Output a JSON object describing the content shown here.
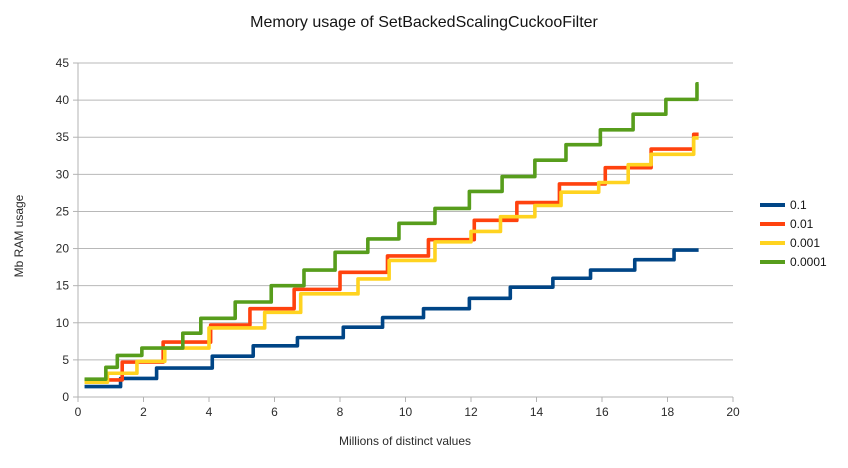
{
  "chart_data": {
    "type": "line",
    "line_style": "step-after",
    "title": "Memory usage of SetBackedScalingCuckooFilter",
    "xlabel": "Millions of distinct values",
    "ylabel": "Mb RAM usage",
    "xlim": [
      0,
      20
    ],
    "ylim": [
      0,
      45
    ],
    "x_ticks": [
      0,
      2,
      4,
      6,
      8,
      10,
      12,
      14,
      16,
      18,
      20
    ],
    "y_ticks": [
      0,
      5,
      10,
      15,
      20,
      25,
      30,
      35,
      40,
      45
    ],
    "grid": "horizontal",
    "grid_color": "#b8b8b8",
    "axis_color": "#b3b3b3",
    "text_color": "#2b2b2b",
    "legend_position": "right",
    "series": [
      {
        "name": "0.1",
        "color": "#004586",
        "points": [
          [
            0.2,
            1.4
          ],
          [
            1.3,
            2.5
          ],
          [
            2.4,
            3.9
          ],
          [
            4.1,
            5.5
          ],
          [
            5.35,
            6.9
          ],
          [
            6.7,
            8.0
          ],
          [
            8.1,
            9.4
          ],
          [
            9.3,
            10.7
          ],
          [
            10.55,
            11.9
          ],
          [
            11.95,
            13.3
          ],
          [
            13.2,
            14.8
          ],
          [
            14.5,
            16.0
          ],
          [
            15.65,
            17.1
          ],
          [
            17.0,
            18.5
          ],
          [
            18.2,
            19.8
          ],
          [
            18.95,
            19.8
          ]
        ]
      },
      {
        "name": "0.01",
        "color": "#ff420e",
        "points": [
          [
            0.2,
            2.3
          ],
          [
            1.35,
            4.7
          ],
          [
            2.6,
            7.4
          ],
          [
            4.05,
            9.7
          ],
          [
            5.25,
            11.9
          ],
          [
            6.6,
            14.5
          ],
          [
            8.0,
            16.8
          ],
          [
            9.45,
            19.0
          ],
          [
            10.7,
            21.2
          ],
          [
            12.1,
            23.8
          ],
          [
            13.4,
            26.2
          ],
          [
            14.7,
            28.7
          ],
          [
            16.1,
            30.9
          ],
          [
            17.5,
            33.4
          ],
          [
            18.8,
            35.4
          ],
          [
            18.95,
            35.4
          ]
        ]
      },
      {
        "name": "0.001",
        "color": "#ffd320",
        "points": [
          [
            0.2,
            2.0
          ],
          [
            0.9,
            3.2
          ],
          [
            1.8,
            4.8
          ],
          [
            2.65,
            6.6
          ],
          [
            4.0,
            9.3
          ],
          [
            5.7,
            11.4
          ],
          [
            6.8,
            13.9
          ],
          [
            8.55,
            15.9
          ],
          [
            9.5,
            18.4
          ],
          [
            10.9,
            20.9
          ],
          [
            12.0,
            22.3
          ],
          [
            12.9,
            24.3
          ],
          [
            13.95,
            25.8
          ],
          [
            14.75,
            27.6
          ],
          [
            15.9,
            28.9
          ],
          [
            16.8,
            31.3
          ],
          [
            17.5,
            32.7
          ],
          [
            18.8,
            34.9
          ],
          [
            18.95,
            34.9
          ]
        ]
      },
      {
        "name": "0.0001",
        "color": "#579d1c",
        "points": [
          [
            0.2,
            2.4
          ],
          [
            0.85,
            4.0
          ],
          [
            1.2,
            5.6
          ],
          [
            1.95,
            6.6
          ],
          [
            3.2,
            8.6
          ],
          [
            3.75,
            10.6
          ],
          [
            4.8,
            12.8
          ],
          [
            5.9,
            15.0
          ],
          [
            6.9,
            17.1
          ],
          [
            7.85,
            19.5
          ],
          [
            8.85,
            21.3
          ],
          [
            9.8,
            23.4
          ],
          [
            10.9,
            25.4
          ],
          [
            11.95,
            27.7
          ],
          [
            12.95,
            29.7
          ],
          [
            13.95,
            31.9
          ],
          [
            14.9,
            34.0
          ],
          [
            15.95,
            36.0
          ],
          [
            16.95,
            38.1
          ],
          [
            17.95,
            40.1
          ],
          [
            18.9,
            42.2
          ],
          [
            18.95,
            42.2
          ]
        ]
      }
    ]
  }
}
